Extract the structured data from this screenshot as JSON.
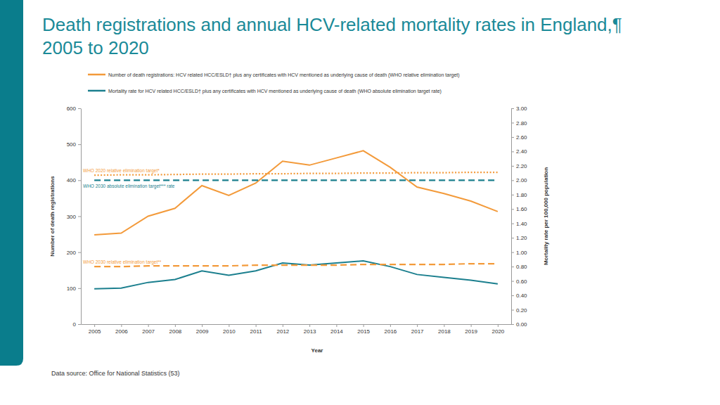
{
  "chart_data": {
    "type": "line",
    "title": "Death registrations and annual HCV-related mortality rates in England,¶ 2005 to 2020",
    "xlabel": "Year",
    "ylabel": "Number of death registrations",
    "y2label": "Mortality rate per 100,000 population",
    "note": "Data source: Office for National Statistics (53)",
    "categories": [
      2005,
      2006,
      2007,
      2008,
      2009,
      2010,
      2011,
      2012,
      2013,
      2014,
      2015,
      2016,
      2017,
      2018,
      2019,
      2020
    ],
    "series": [
      {
        "name": "Number of death registrations: HCV related HCC/ESLD† plus any certificates with HCV mentioned as underlying cause of death (WHO relative elimination target)",
        "color": "#f39a3a",
        "line_style": "solid",
        "values": [
          248,
          253,
          300,
          322,
          385,
          358,
          392,
          453,
          442,
          462,
          482,
          436,
          381,
          363,
          342,
          313
        ]
      },
      {
        "name": "Mortality rate for HCV related HCC/ESLD† plus any certificates with HCV mentioned as underlying cause of death (WHO absolute elimination target rate)",
        "color": "#1b7f8e",
        "line_style": "solid",
        "axis": "y2",
        "values": [
          0.49,
          0.5,
          0.58,
          0.62,
          0.74,
          0.68,
          0.74,
          0.85,
          0.82,
          0.85,
          0.88,
          0.8,
          0.69,
          0.65,
          0.61,
          0.56
        ]
      },
      {
        "name": "WHO 2020 relative elimination target*",
        "color": "#f39a3a",
        "line_style": "dotted",
        "values": [
          414,
          415,
          415,
          416,
          417,
          417,
          418,
          418,
          419,
          419,
          420,
          420,
          421,
          421,
          422,
          422
        ]
      },
      {
        "name": "WHO 2030 absolute elimination target*** rate",
        "color": "#1b7f8e",
        "line_style": "dashed",
        "axis": "y2",
        "values": [
          2.0,
          2.0,
          2.0,
          2.0,
          2.0,
          2.0,
          2.0,
          2.0,
          2.0,
          2.0,
          2.0,
          2.0,
          2.0,
          2.0,
          2.0,
          2.0
        ]
      },
      {
        "name": "WHO 2030 relative elimination target**",
        "color": "#f39a3a",
        "line_style": "dashed",
        "axis": "y2",
        "values": [
          0.8,
          0.8,
          0.81,
          0.81,
          0.81,
          0.81,
          0.82,
          0.82,
          0.82,
          0.82,
          0.83,
          0.83,
          0.83,
          0.83,
          0.84,
          0.84
        ]
      }
    ],
    "ylim": [
      0,
      600
    ],
    "yticks": [
      0,
      100,
      200,
      300,
      400,
      500,
      600
    ],
    "y2lim": [
      0,
      3
    ],
    "y2ticks": [
      {
        "value": 0,
        "label": "0.00"
      },
      {
        "value": 0.2,
        "label": "0.20"
      },
      {
        "value": 0.4,
        "label": "0.40"
      },
      {
        "value": 0.6,
        "label": "0.60"
      },
      {
        "value": 0.8,
        "label": "0.80"
      },
      {
        "value": 1,
        "label": "1.00"
      },
      {
        "value": 1.2,
        "label": "1.20"
      },
      {
        "value": 1.4,
        "label": "1.40"
      },
      {
        "value": 1.6,
        "label": "1.60"
      },
      {
        "value": 1.8,
        "label": "1.80"
      },
      {
        "value": 2,
        "label": "2.00"
      },
      {
        "value": 2.2,
        "label": "2.20"
      },
      {
        "value": 2.4,
        "label": "2.40"
      },
      {
        "value": 2.6,
        "label": "2.60"
      },
      {
        "value": 2.8,
        "label": "2.80"
      },
      {
        "value": 3,
        "label": "3.00"
      }
    ],
    "grid": false,
    "legend": "top"
  }
}
